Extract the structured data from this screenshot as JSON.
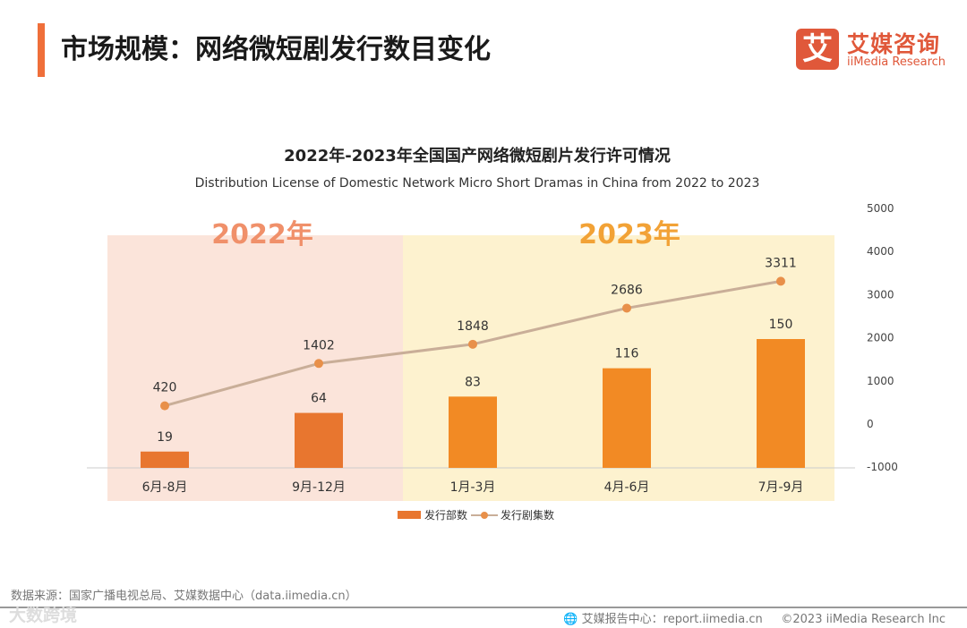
{
  "header": {
    "title": "市场规模：网络微短剧发行数目变化"
  },
  "logo": {
    "mark": "艾",
    "name_cn": "艾媒咨询",
    "name_en": "iiMedia Research"
  },
  "chart_data": {
    "type": "bar",
    "title": "2022年-2023年全国国产网络微短剧片发行许可情况",
    "subtitle": "Distribution License of Domestic Network Micro Short Dramas in China from 2022 to 2023",
    "categories": [
      "6月-8月",
      "9月-12月",
      "1月-3月",
      "4月-6月",
      "7月-9月"
    ],
    "period_labels": [
      "2022年",
      "2023年"
    ],
    "series": [
      {
        "name": "发行部数",
        "type": "bar",
        "values": [
          19,
          64,
          83,
          116,
          150
        ],
        "axis": "left-hidden",
        "range": [
          0,
          150
        ]
      },
      {
        "name": "发行剧集数",
        "type": "line",
        "values": [
          420,
          1402,
          1848,
          2686,
          3311
        ],
        "axis": "right",
        "range": [
          -1000,
          5000
        ]
      }
    ],
    "right_ticks": [
      "5000",
      "4000",
      "3000",
      "2000",
      "1000",
      "0",
      "-1000"
    ],
    "legend": "bottom",
    "colors": {
      "bar2022": "#E8762F",
      "bar2023": "#F28A24",
      "line": "#C9AE98",
      "dot": "#E8904A",
      "bg2022": "#FBE4DA",
      "bg2023": "#FDF2CF",
      "label2022": "#F0906A",
      "label2023": "#F2A236"
    }
  },
  "footer": {
    "source": "数据来源：国家广播电视总局、艾媒数据中心（data.iimedia.cn）",
    "report": "艾媒报告中心：report.iimedia.cn",
    "copyright": "©2023  iiMedia Research Inc",
    "watermark": "大数跨境"
  }
}
